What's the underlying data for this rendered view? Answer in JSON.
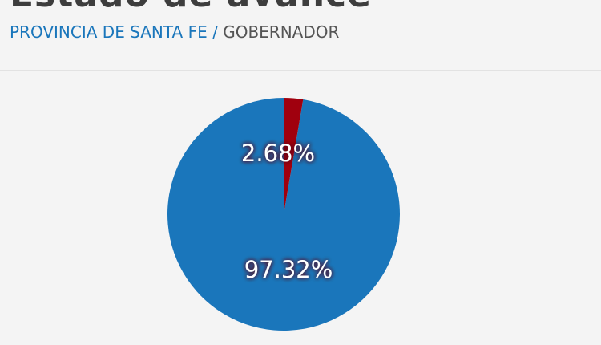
{
  "page": {
    "title": "Estado de avance",
    "breadcrumb": {
      "province": "PROVINCIA DE SANTA FE",
      "separator": " / ",
      "office": "GOBERNADOR"
    }
  },
  "colors": {
    "accent": "#1a76bb",
    "slice_major": "#1a76bb",
    "slice_minor": "#a0000e",
    "background": "#f4f4f4"
  },
  "chart_data": {
    "type": "pie",
    "title": "",
    "legend": "none",
    "slices": [
      {
        "label": "97.32%",
        "value": 97.32,
        "color": "#1a76bb"
      },
      {
        "label": "2.68%",
        "value": 2.68,
        "color": "#a0000e"
      }
    ]
  }
}
